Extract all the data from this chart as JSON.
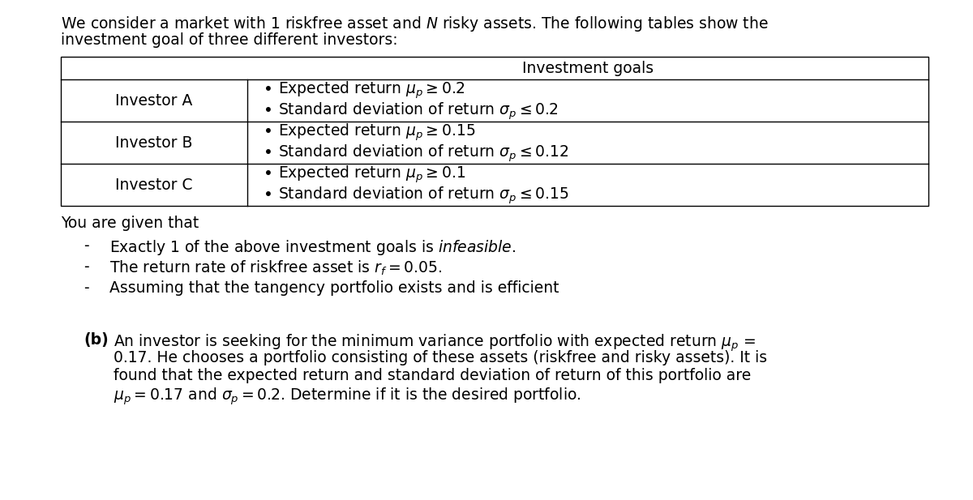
{
  "intro_line1": "We consider a market with 1 riskfree asset and $N$ risky assets. The following tables show the",
  "intro_line2": "investment goal of three different investors:",
  "table_header": "Investment goals",
  "investors": [
    "Investor A",
    "Investor B",
    "Investor C"
  ],
  "goals": [
    [
      "Expected return $\\mu_p \\geq 0.2$",
      "Standard deviation of return $\\sigma_p \\leq 0.2$"
    ],
    [
      "Expected return $\\mu_p \\geq 0.15$",
      "Standard deviation of return $\\sigma_p \\leq 0.12$"
    ],
    [
      "Expected return $\\mu_p \\geq 0.1$",
      "Standard deviation of return $\\sigma_p \\leq 0.15$"
    ]
  ],
  "given_text": "You are given that",
  "bullet1": "Exactly 1 of the above investment goals is $\\mathit{infeasible}$.",
  "bullet2": "The return rate of riskfree asset is $r_f = 0.05$.",
  "bullet3": "Assuming that the tangency portfolio exists and is efficient",
  "part_b_label": "(b)",
  "part_b_line1": "An investor is seeking for the minimum variance portfolio with expected return $\\mu_p$ =",
  "part_b_line2": "0.17. He chooses a portfolio consisting of these assets (riskfree and risky assets). It is",
  "part_b_line3": "found that the expected return and standard deviation of return of this portfolio are",
  "part_b_line4": "$\\mu_p = 0.17$ and $\\sigma_p = 0.2$. Determine if it is the desired portfolio.",
  "bg_color": "#ffffff",
  "text_color": "#000000",
  "font_size": 13.5,
  "table_col_split": 0.215
}
